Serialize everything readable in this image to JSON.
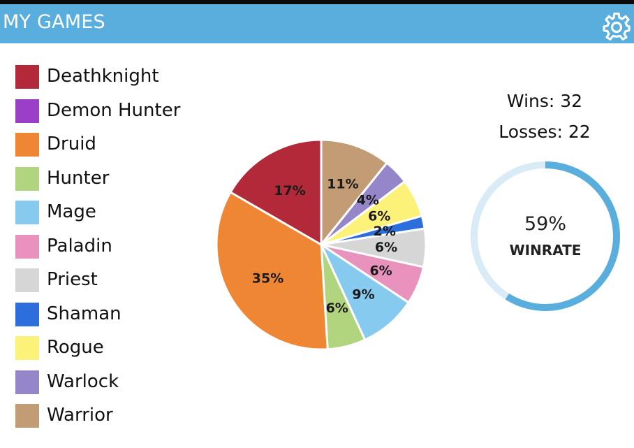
{
  "header": {
    "title": "MY GAMES",
    "settings_icon": "gear-icon",
    "background": "#5aaede"
  },
  "legend": [
    {
      "label": "Deathknight",
      "color": "#b22a3a"
    },
    {
      "label": "Demon Hunter",
      "color": "#9b3fc8"
    },
    {
      "label": "Druid",
      "color": "#ef8634"
    },
    {
      "label": "Hunter",
      "color": "#b1d47f"
    },
    {
      "label": "Mage",
      "color": "#86caef"
    },
    {
      "label": "Paladin",
      "color": "#e892bd"
    },
    {
      "label": "Priest",
      "color": "#d6d6d6"
    },
    {
      "label": "Shaman",
      "color": "#2c6edb"
    },
    {
      "label": "Rogue",
      "color": "#fcf279"
    },
    {
      "label": "Warlock",
      "color": "#9486c9"
    },
    {
      "label": "Warrior",
      "color": "#c29c74"
    }
  ],
  "chart_data": {
    "type": "pie",
    "slices": [
      {
        "class": "Warrior",
        "percent": 11,
        "label": "11%",
        "color": "#c29c74"
      },
      {
        "class": "Warlock",
        "percent": 4,
        "label": "4%",
        "color": "#9486c9"
      },
      {
        "class": "Rogue",
        "percent": 6,
        "label": "6%",
        "color": "#fcf279"
      },
      {
        "class": "Shaman",
        "percent": 2,
        "label": "2%",
        "color": "#2c6edb"
      },
      {
        "class": "Priest",
        "percent": 6,
        "label": "6%",
        "color": "#d6d6d6"
      },
      {
        "class": "Paladin",
        "percent": 6,
        "label": "6%",
        "color": "#e892bd"
      },
      {
        "class": "Mage",
        "percent": 9,
        "label": "9%",
        "color": "#86caef"
      },
      {
        "class": "Hunter",
        "percent": 6,
        "label": "6%",
        "color": "#b1d47f"
      },
      {
        "class": "Druid",
        "percent": 35,
        "label": "35%",
        "color": "#ef8634"
      },
      {
        "class": "Deathknight",
        "percent": 17,
        "label": "17%",
        "color": "#b22a3a"
      }
    ]
  },
  "stats": {
    "wins": "Wins: 32",
    "losses": "Losses: 22",
    "winrate_value": "59%",
    "winrate_label": "WINRATE",
    "winrate_fraction": 0.59,
    "ring_color": "#5aaede",
    "ring_track_color": "#d8ebf7"
  }
}
